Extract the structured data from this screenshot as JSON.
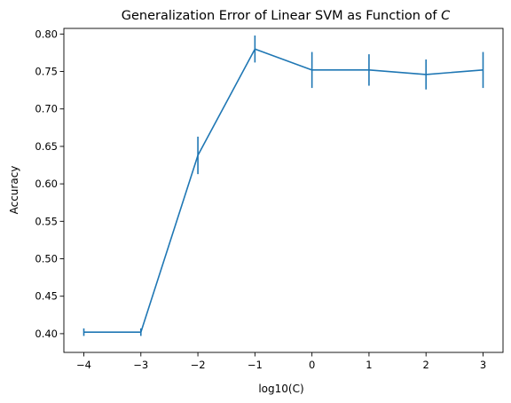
{
  "chart_data": {
    "type": "line",
    "title": "Generalization Error of Linear SVM as Function of ",
    "title_variable": "C",
    "xlabel": "log10(C)",
    "ylabel": "Accuracy",
    "x": [
      -4,
      -3,
      -2,
      -1,
      0,
      1,
      2,
      3
    ],
    "series": [
      {
        "values": [
          0.402,
          0.402,
          0.638,
          0.78,
          0.752,
          0.752,
          0.746,
          0.752
        ],
        "errors": [
          0.005,
          0.005,
          0.025,
          0.018,
          0.024,
          0.021,
          0.02,
          0.024
        ],
        "color": "#1f77b4"
      }
    ],
    "xlim": [
      -4.35,
      3.35
    ],
    "ylim": [
      0.375,
      0.8075
    ],
    "xticks": [
      -4,
      -3,
      -2,
      -1,
      0,
      1,
      2,
      3
    ],
    "xtick_labels": [
      "−4",
      "−3",
      "−2",
      "−1",
      "0",
      "1",
      "2",
      "3"
    ],
    "yticks": [
      0.4,
      0.45,
      0.5,
      0.55,
      0.6,
      0.65,
      0.7,
      0.75,
      0.8
    ],
    "ytick_labels": [
      "0.40",
      "0.45",
      "0.50",
      "0.55",
      "0.60",
      "0.65",
      "0.70",
      "0.75",
      "0.80"
    ],
    "grid": false,
    "legend": false
  }
}
